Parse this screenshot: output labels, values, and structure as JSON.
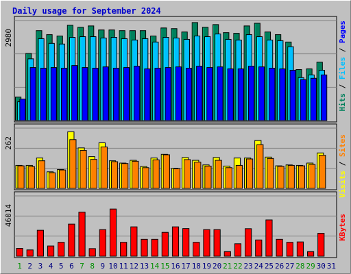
{
  "chart_data": {
    "type": "bar",
    "title": "Daily usage for September 2024",
    "x": [
      "1",
      "2",
      "3",
      "4",
      "5",
      "6",
      "7",
      "8",
      "9",
      "10",
      "11",
      "12",
      "13",
      "14",
      "15",
      "16",
      "17",
      "18",
      "19",
      "20",
      "21",
      "22",
      "23",
      "24",
      "25",
      "26",
      "27",
      "28",
      "29",
      "30",
      "31"
    ],
    "weekend_color": "#009000",
    "weekday_color": "#000080",
    "weekend_days": [
      "1",
      "7",
      "8",
      "14",
      "15",
      "21",
      "22",
      "28",
      "29"
    ],
    "panels": [
      {
        "name": "hits-files-pages",
        "ymax_label": "2980",
        "ymax": 2980,
        "series": [
          {
            "name": "Hits",
            "color": "#00805c",
            "values": [
              700,
              2000,
              2680,
              2560,
              2520,
              2840,
              2780,
              2820,
              2700,
              2700,
              2680,
              2680,
              2680,
              2520,
              2760,
              2740,
              2640,
              2920,
              2780,
              2860,
              2620,
              2600,
              2820,
              2900,
              2640,
              2560,
              2340,
              1520,
              1540,
              1740,
              0
            ]
          },
          {
            "name": "Files",
            "color": "#00c0ff",
            "values": [
              560,
              1840,
              2440,
              2300,
              2280,
              2480,
              2500,
              2500,
              2460,
              2480,
              2440,
              2400,
              2440,
              2340,
              2480,
              2460,
              2420,
              2520,
              2500,
              2580,
              2420,
              2400,
              2560,
              2500,
              2400,
              2380,
              2200,
              1280,
              1360,
              1500,
              0
            ]
          },
          {
            "name": "Pages",
            "color": "#0000ff",
            "values": [
              640,
              1580,
              1560,
              1580,
              1560,
              1640,
              1580,
              1560,
              1600,
              1560,
              1580,
              1620,
              1540,
              1560,
              1580,
              1600,
              1560,
              1620,
              1580,
              1600,
              1540,
              1540,
              1620,
              1600,
              1560,
              1540,
              1500,
              1220,
              1260,
              1360,
              0
            ]
          }
        ]
      },
      {
        "name": "visits-sites",
        "ymax_label": "262",
        "ymax": 262,
        "series": [
          {
            "name": "Visits",
            "color": "#ffff00",
            "values": [
              100,
              100,
              132,
              72,
              82,
              246,
              176,
              138,
              198,
              120,
              110,
              122,
              95,
              132,
              148,
              87,
              134,
              122,
              102,
              134,
              97,
              132,
              132,
              208,
              136,
              98,
              102,
              100,
              110,
              154,
              0
            ]
          },
          {
            "name": "Sites",
            "color": "#ff8000",
            "values": [
              98,
              95,
              120,
              68,
              80,
              212,
              165,
              126,
              180,
              116,
              108,
              118,
              90,
              124,
              146,
              85,
              125,
              114,
              97,
              122,
              90,
              100,
              128,
              190,
              130,
              96,
              100,
              98,
              104,
              144,
              0
            ]
          }
        ]
      },
      {
        "name": "kbytes",
        "ymax_label": "46014",
        "ymax": 46014,
        "series": [
          {
            "name": "KBytes",
            "color": "#ff0000",
            "values": [
              6000,
              4800,
              19800,
              7800,
              10600,
              24500,
              33600,
              5800,
              20300,
              36000,
              10600,
              22400,
              12900,
              12900,
              18200,
              22400,
              21100,
              10600,
              20300,
              20300,
              3500,
              9500,
              21000,
              12400,
              27700,
              12900,
              10600,
              10900,
              3500,
              17500,
              0
            ]
          }
        ]
      }
    ],
    "legend": [
      {
        "label": "Hits",
        "color": "#00805c"
      },
      {
        "sep": " / "
      },
      {
        "label": "Files",
        "color": "#00c0ff"
      },
      {
        "sep": " / "
      },
      {
        "label": "Pages",
        "color": "#0000ff"
      },
      {
        "label": "Visits",
        "color": "#ffff00"
      },
      {
        "sep": " / "
      },
      {
        "label": "Sites",
        "color": "#ff8000"
      },
      {
        "label": "KBytes",
        "color": "#ff0000"
      }
    ]
  }
}
